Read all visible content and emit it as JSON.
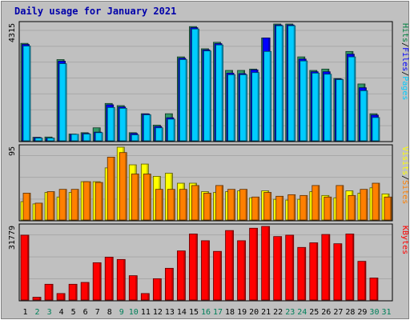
{
  "chart_data": {
    "type": "bar",
    "title": "Daily usage for January 2021",
    "categories": [
      "1",
      "2",
      "3",
      "4",
      "5",
      "6",
      "7",
      "8",
      "9",
      "10",
      "11",
      "12",
      "13",
      "14",
      "15",
      "16",
      "17",
      "18",
      "19",
      "20",
      "21",
      "22",
      "23",
      "24",
      "25",
      "26",
      "27",
      "28",
      "29",
      "30",
      "31"
    ],
    "weekend_days": [
      "2",
      "3",
      "9",
      "10",
      "16",
      "17",
      "23",
      "24",
      "30",
      "31"
    ],
    "panels": [
      {
        "id": "hits",
        "max_label": "4315",
        "ymax": 4315,
        "legend": [
          {
            "name": "Pages",
            "color": "#00ccff"
          },
          {
            "name": "Files",
            "color": "#0000ff"
          },
          {
            "name": "Hits",
            "color": "#008040"
          }
        ],
        "series": [
          {
            "name": "Hits",
            "color": "#339966",
            "values": [
              3600,
              130,
              140,
              3000,
              250,
              300,
              480,
              1380,
              1300,
              300,
              1000,
              580,
              1000,
              3100,
              4220,
              3400,
              3640,
              2600,
              2600,
              2650,
              3800,
              4315,
              4315,
              3100,
              2600,
              2650,
              2300,
              3300,
              2100,
              1000,
              0
            ]
          },
          {
            "name": "Files",
            "color": "#0000ff",
            "values": [
              3560,
              120,
              100,
              2940,
              240,
              270,
              320,
              1330,
              1250,
              270,
              990,
              530,
              850,
              3050,
              4180,
              3360,
              3590,
              2500,
              2480,
              2620,
              3800,
              4280,
              4280,
              3020,
              2550,
              2550,
              2280,
              3200,
              1960,
              950,
              0
            ]
          },
          {
            "name": "Pages",
            "color": "#00ccff",
            "values": [
              3500,
              100,
              100,
              2850,
              240,
              250,
              300,
              1230,
              1200,
              220,
              960,
              480,
              800,
              3000,
              4130,
              3320,
              3540,
              2440,
              2440,
              2520,
              3300,
              4250,
              4250,
              2950,
              2500,
              2460,
              2260,
              3100,
              1850,
              860,
              0
            ]
          }
        ]
      },
      {
        "id": "visits",
        "max_label": "95",
        "ymax": 95,
        "legend": [
          {
            "name": "Sites",
            "color": "#ff8000"
          },
          {
            "name": "Visits",
            "color": "#ffff00"
          }
        ],
        "series": [
          {
            "name": "Visits",
            "color": "#ffff00",
            "values": [
              24,
              21,
              36,
              30,
              36,
              50,
              50,
              68,
              95,
              72,
              73,
              57,
              61,
              48,
              48,
              37,
              36,
              37,
              38,
              29,
              38,
              27,
              26,
              27,
              37,
              32,
              29,
              38,
              35,
              42,
              34
            ]
          },
          {
            "name": "Sites",
            "color": "#ff8000",
            "values": [
              35,
              22,
              37,
              40,
              40,
              50,
              49,
              82,
              88,
              60,
              60,
              40,
              40,
              40,
              45,
              35,
              45,
              40,
              40,
              30,
              36,
              31,
              33,
              32,
              45,
              30,
              45,
              32,
              40,
              48,
              30
            ]
          }
        ]
      },
      {
        "id": "kbytes",
        "max_label": "31779",
        "ymax": 31779,
        "legend": [
          {
            "name": "KBytes",
            "color": "#ff0000"
          }
        ],
        "series": [
          {
            "name": "KBytes",
            "color": "#ff0000",
            "values": [
              28000,
              1200,
              6800,
              2800,
              6800,
              7600,
              16100,
              18500,
              17500,
              10500,
              2800,
              9200,
              13700,
              21200,
              28500,
              25600,
              21000,
              30000,
              25600,
              31000,
              31779,
              27400,
              28000,
              22700,
              24700,
              28300,
              24300,
              28500,
              16700,
              9500,
              0
            ]
          }
        ]
      }
    ]
  }
}
